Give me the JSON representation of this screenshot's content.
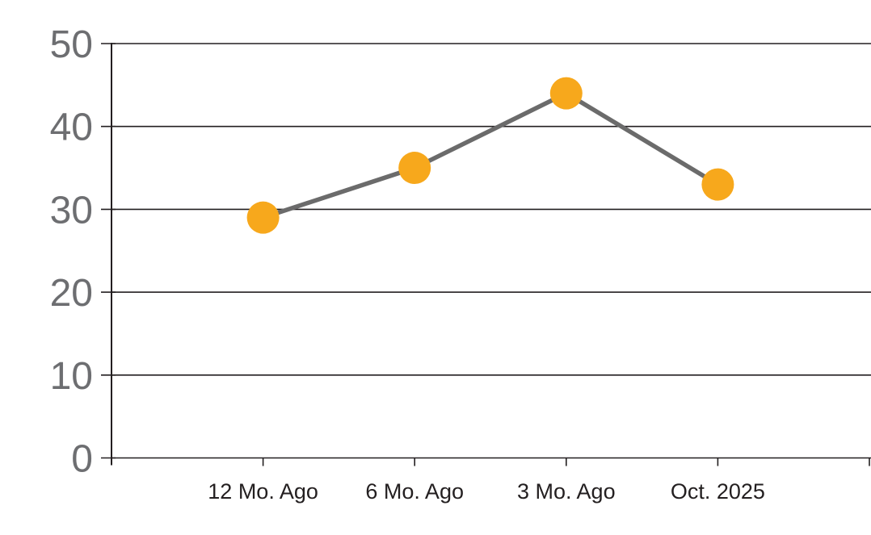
{
  "chart_data": {
    "type": "line",
    "categories": [
      "12 Mo. Ago",
      "6 Mo. Ago",
      "3 Mo. Ago",
      "Oct. 2025"
    ],
    "values": [
      29,
      35,
      44,
      33
    ],
    "title": "",
    "xlabel": "",
    "ylabel": "",
    "ylim": [
      0,
      50
    ],
    "yticks": [
      0,
      10,
      20,
      30,
      40,
      50
    ],
    "grid": true,
    "legend": false,
    "colors": {
      "background": "#FFFFFF",
      "marker": "#F7A81C",
      "line": "#6B6B6B",
      "gridline": "#231F20",
      "axis": "#231F20",
      "y_tick_label": "#6D6E71",
      "x_tick_label": "#231F20"
    },
    "style": {
      "marker_radius": 20,
      "line_width": 5.5,
      "gridline_width": 1.6,
      "axis_width": 2,
      "y_label_font_size": 48,
      "x_label_font_size": 27
    }
  }
}
